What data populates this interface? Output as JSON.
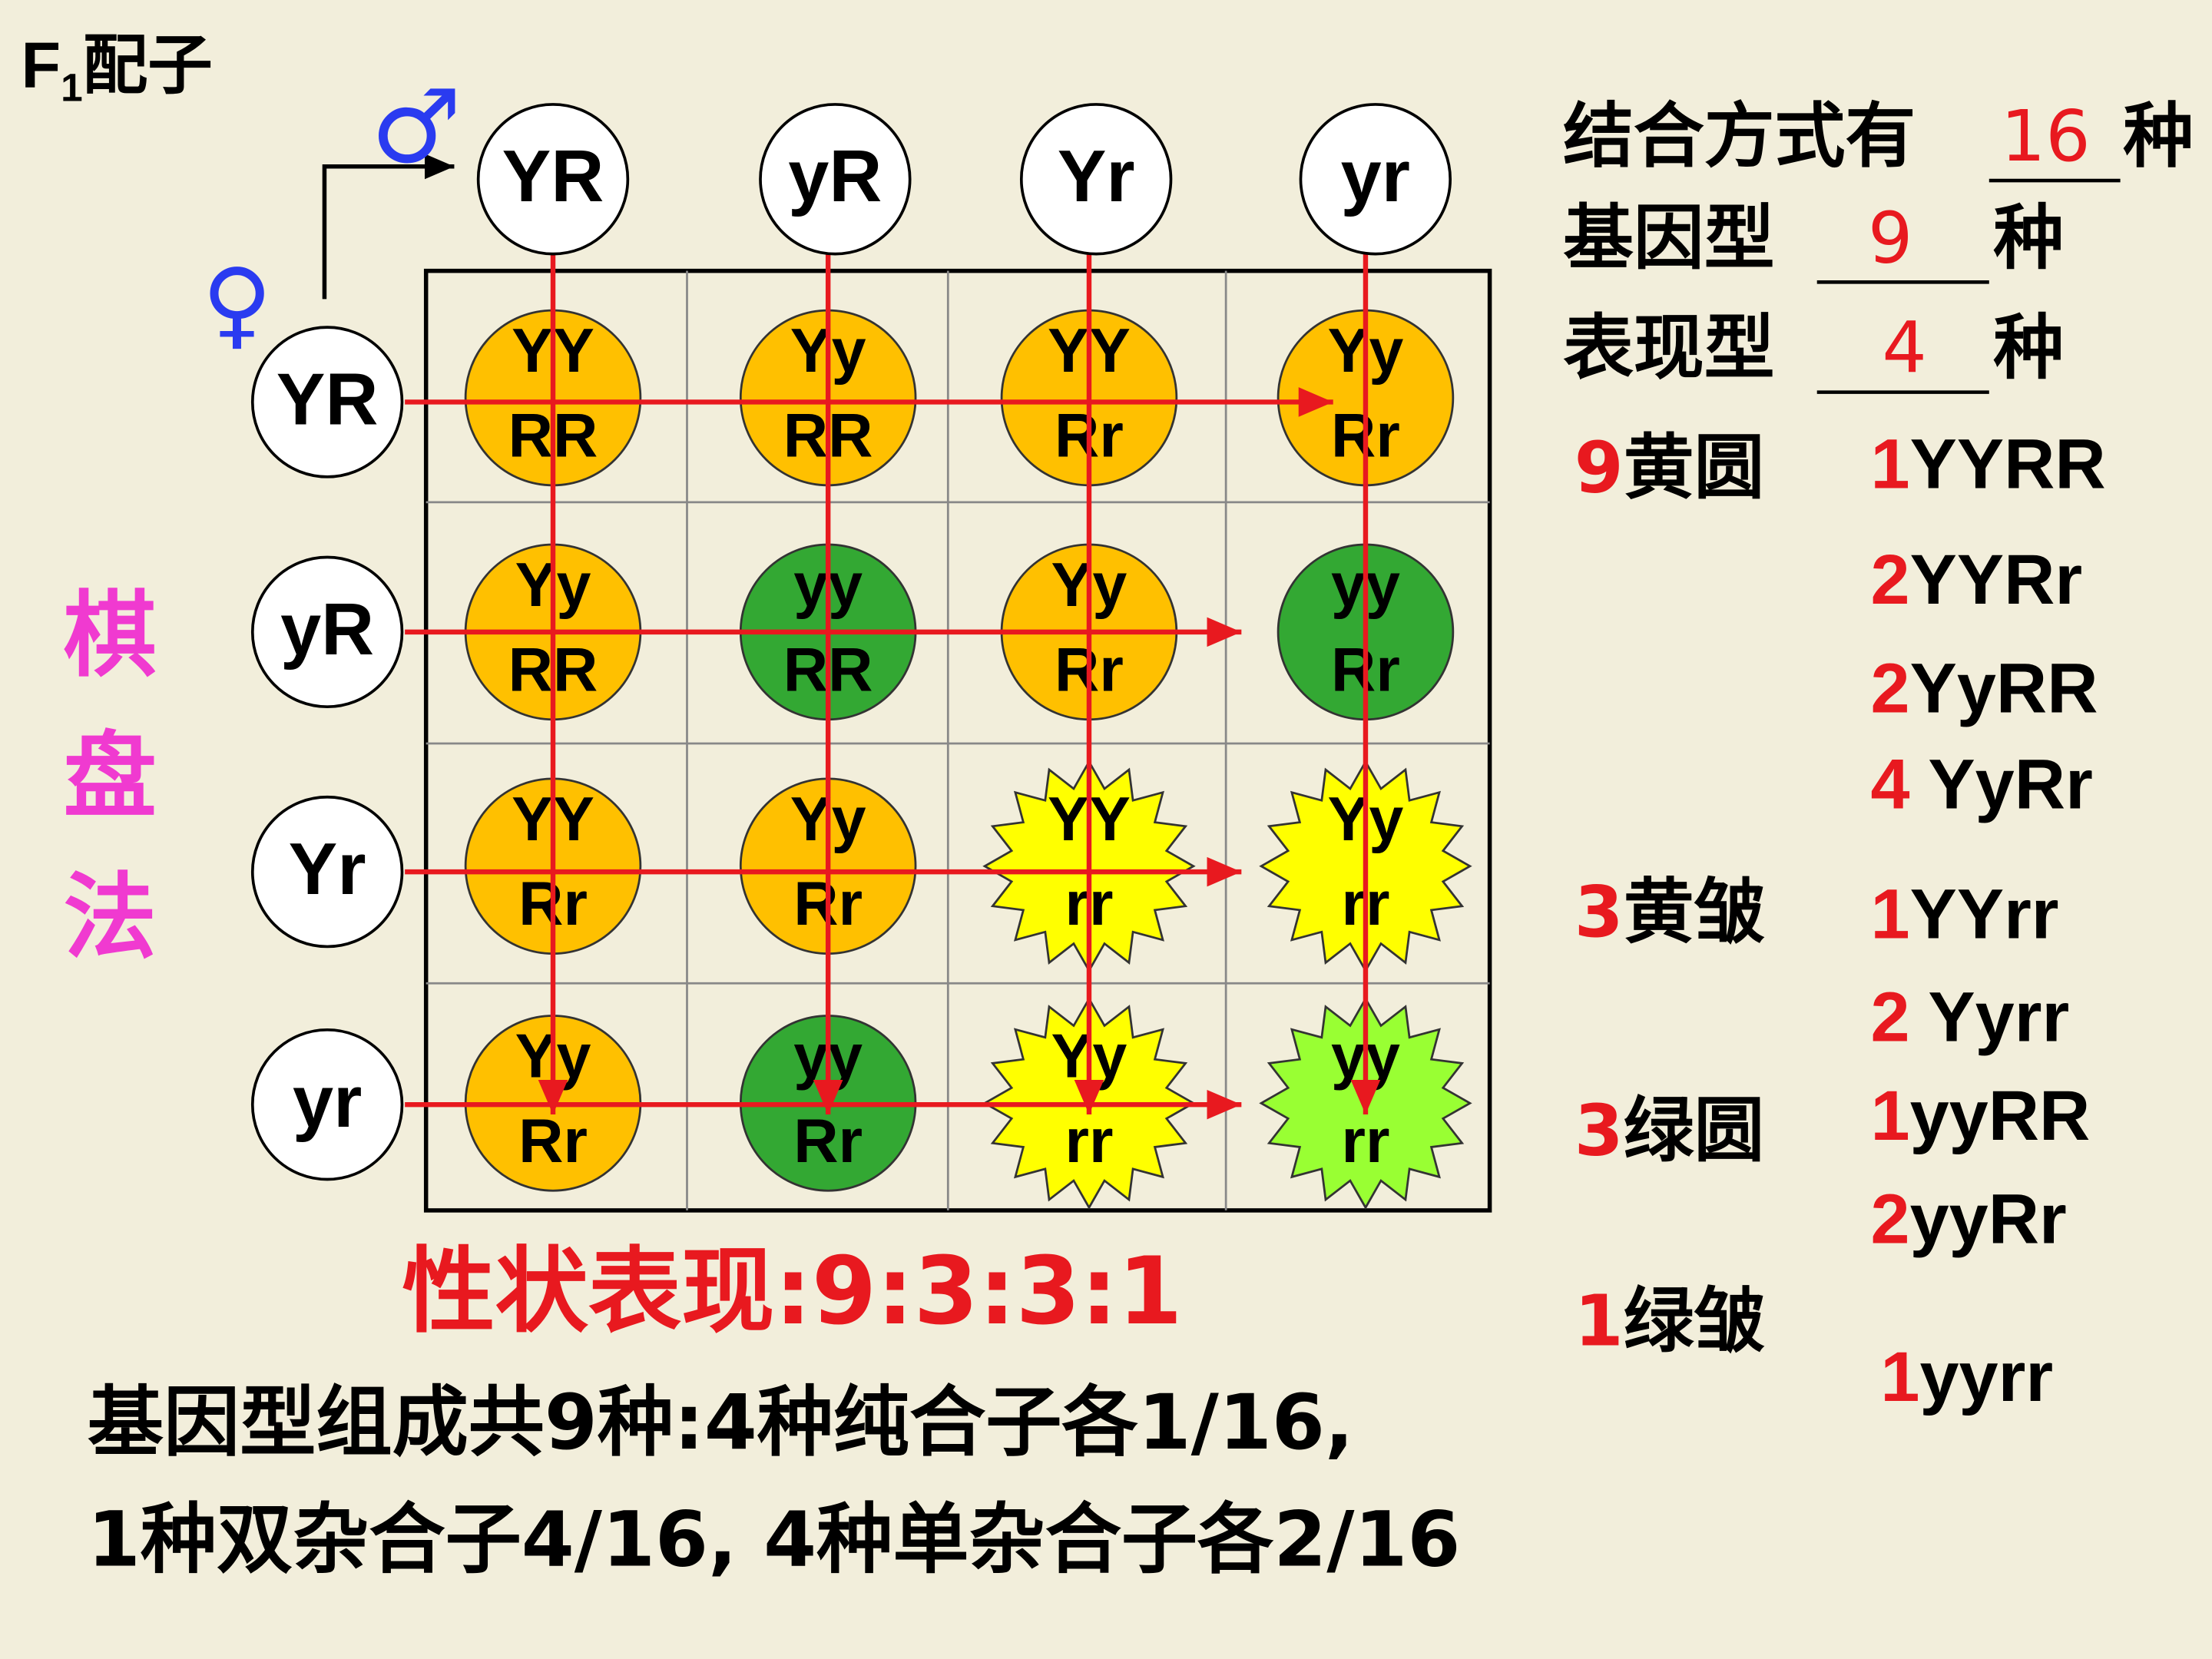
{
  "header": {
    "letter": "F",
    "subscript": "1",
    "rest": "配子"
  },
  "male_symbol": "♂",
  "female_symbol": "♀",
  "male_gametes": [
    "YR",
    "yR",
    "Yr",
    "yr"
  ],
  "female_gametes": [
    "YR",
    "yR",
    "Yr",
    "yr"
  ],
  "cells": [
    [
      {
        "top": "YY",
        "bottom": "RR",
        "shape": "circle",
        "color": "#ffc000"
      },
      {
        "top": "Yy",
        "bottom": "RR",
        "shape": "circle",
        "color": "#ffc000"
      },
      {
        "top": "YY",
        "bottom": "Rr",
        "shape": "circle",
        "color": "#ffc000"
      },
      {
        "top": "Yy",
        "bottom": "Rr",
        "shape": "circle",
        "color": "#ffc000"
      }
    ],
    [
      {
        "top": "Yy",
        "bottom": "RR",
        "shape": "circle",
        "color": "#ffc000"
      },
      {
        "top": "yy",
        "bottom": "RR",
        "shape": "circle",
        "color": "#33a833"
      },
      {
        "top": "Yy",
        "bottom": "Rr",
        "shape": "circle",
        "color": "#ffc000"
      },
      {
        "top": "yy",
        "bottom": "Rr",
        "shape": "circle",
        "color": "#33a833"
      }
    ],
    [
      {
        "top": "YY",
        "bottom": "Rr",
        "shape": "circle",
        "color": "#ffc000"
      },
      {
        "top": "Yy",
        "bottom": "Rr",
        "shape": "circle",
        "color": "#ffc000"
      },
      {
        "top": "YY",
        "bottom": "rr",
        "shape": "star",
        "color": "#ffff00"
      },
      {
        "top": "Yy",
        "bottom": "rr",
        "shape": "star",
        "color": "#ffff00"
      }
    ],
    [
      {
        "top": "Yy",
        "bottom": "Rr",
        "shape": "circle",
        "color": "#ffc000"
      },
      {
        "top": "yy",
        "bottom": "Rr",
        "shape": "circle",
        "color": "#33a833"
      },
      {
        "top": "Yy",
        "bottom": "rr",
        "shape": "star",
        "color": "#ffff00"
      },
      {
        "top": "yy",
        "bottom": "rr",
        "shape": "star",
        "color": "#99ff33"
      }
    ]
  ],
  "side_label": [
    "棋",
    "盘",
    "法"
  ],
  "summary": [
    {
      "label": "结合方式有",
      "value": "16",
      "unit": "种"
    },
    {
      "label": "基因型",
      "value": "9",
      "unit": "种"
    },
    {
      "label": "表现型",
      "value": "4",
      "unit": "种"
    }
  ],
  "phenotypes": [
    {
      "count": "9",
      "name": "黄圆",
      "genotypes": [
        {
          "count": "1",
          "name": "YYRR"
        },
        {
          "count": "2",
          "name": "YYRr"
        },
        {
          "count": "2",
          "name": "YyRR"
        },
        {
          "count": "4",
          "name": " YyRr"
        }
      ]
    },
    {
      "count": "3",
      "name": "黄皱",
      "genotypes": [
        {
          "count": "1",
          "name": "YYrr"
        },
        {
          "count": "2",
          "name": " Yyrr"
        }
      ]
    },
    {
      "count": "3",
      "name": "绿圆",
      "genotypes": [
        {
          "count": "1",
          "name": "yyRR"
        },
        {
          "count": "2",
          "name": "yyRr"
        }
      ]
    },
    {
      "count": "1",
      "name": "绿皱",
      "genotypes": [
        {
          "count": "1",
          "name": "yyrr"
        }
      ]
    }
  ],
  "ratio_text": "性状表现:9:3:3:1",
  "conclusion": [
    "基因型组成共9种:4种纯合子各1/16,",
    "1种双杂合子4/16, 4种单杂合子各2/16"
  ]
}
